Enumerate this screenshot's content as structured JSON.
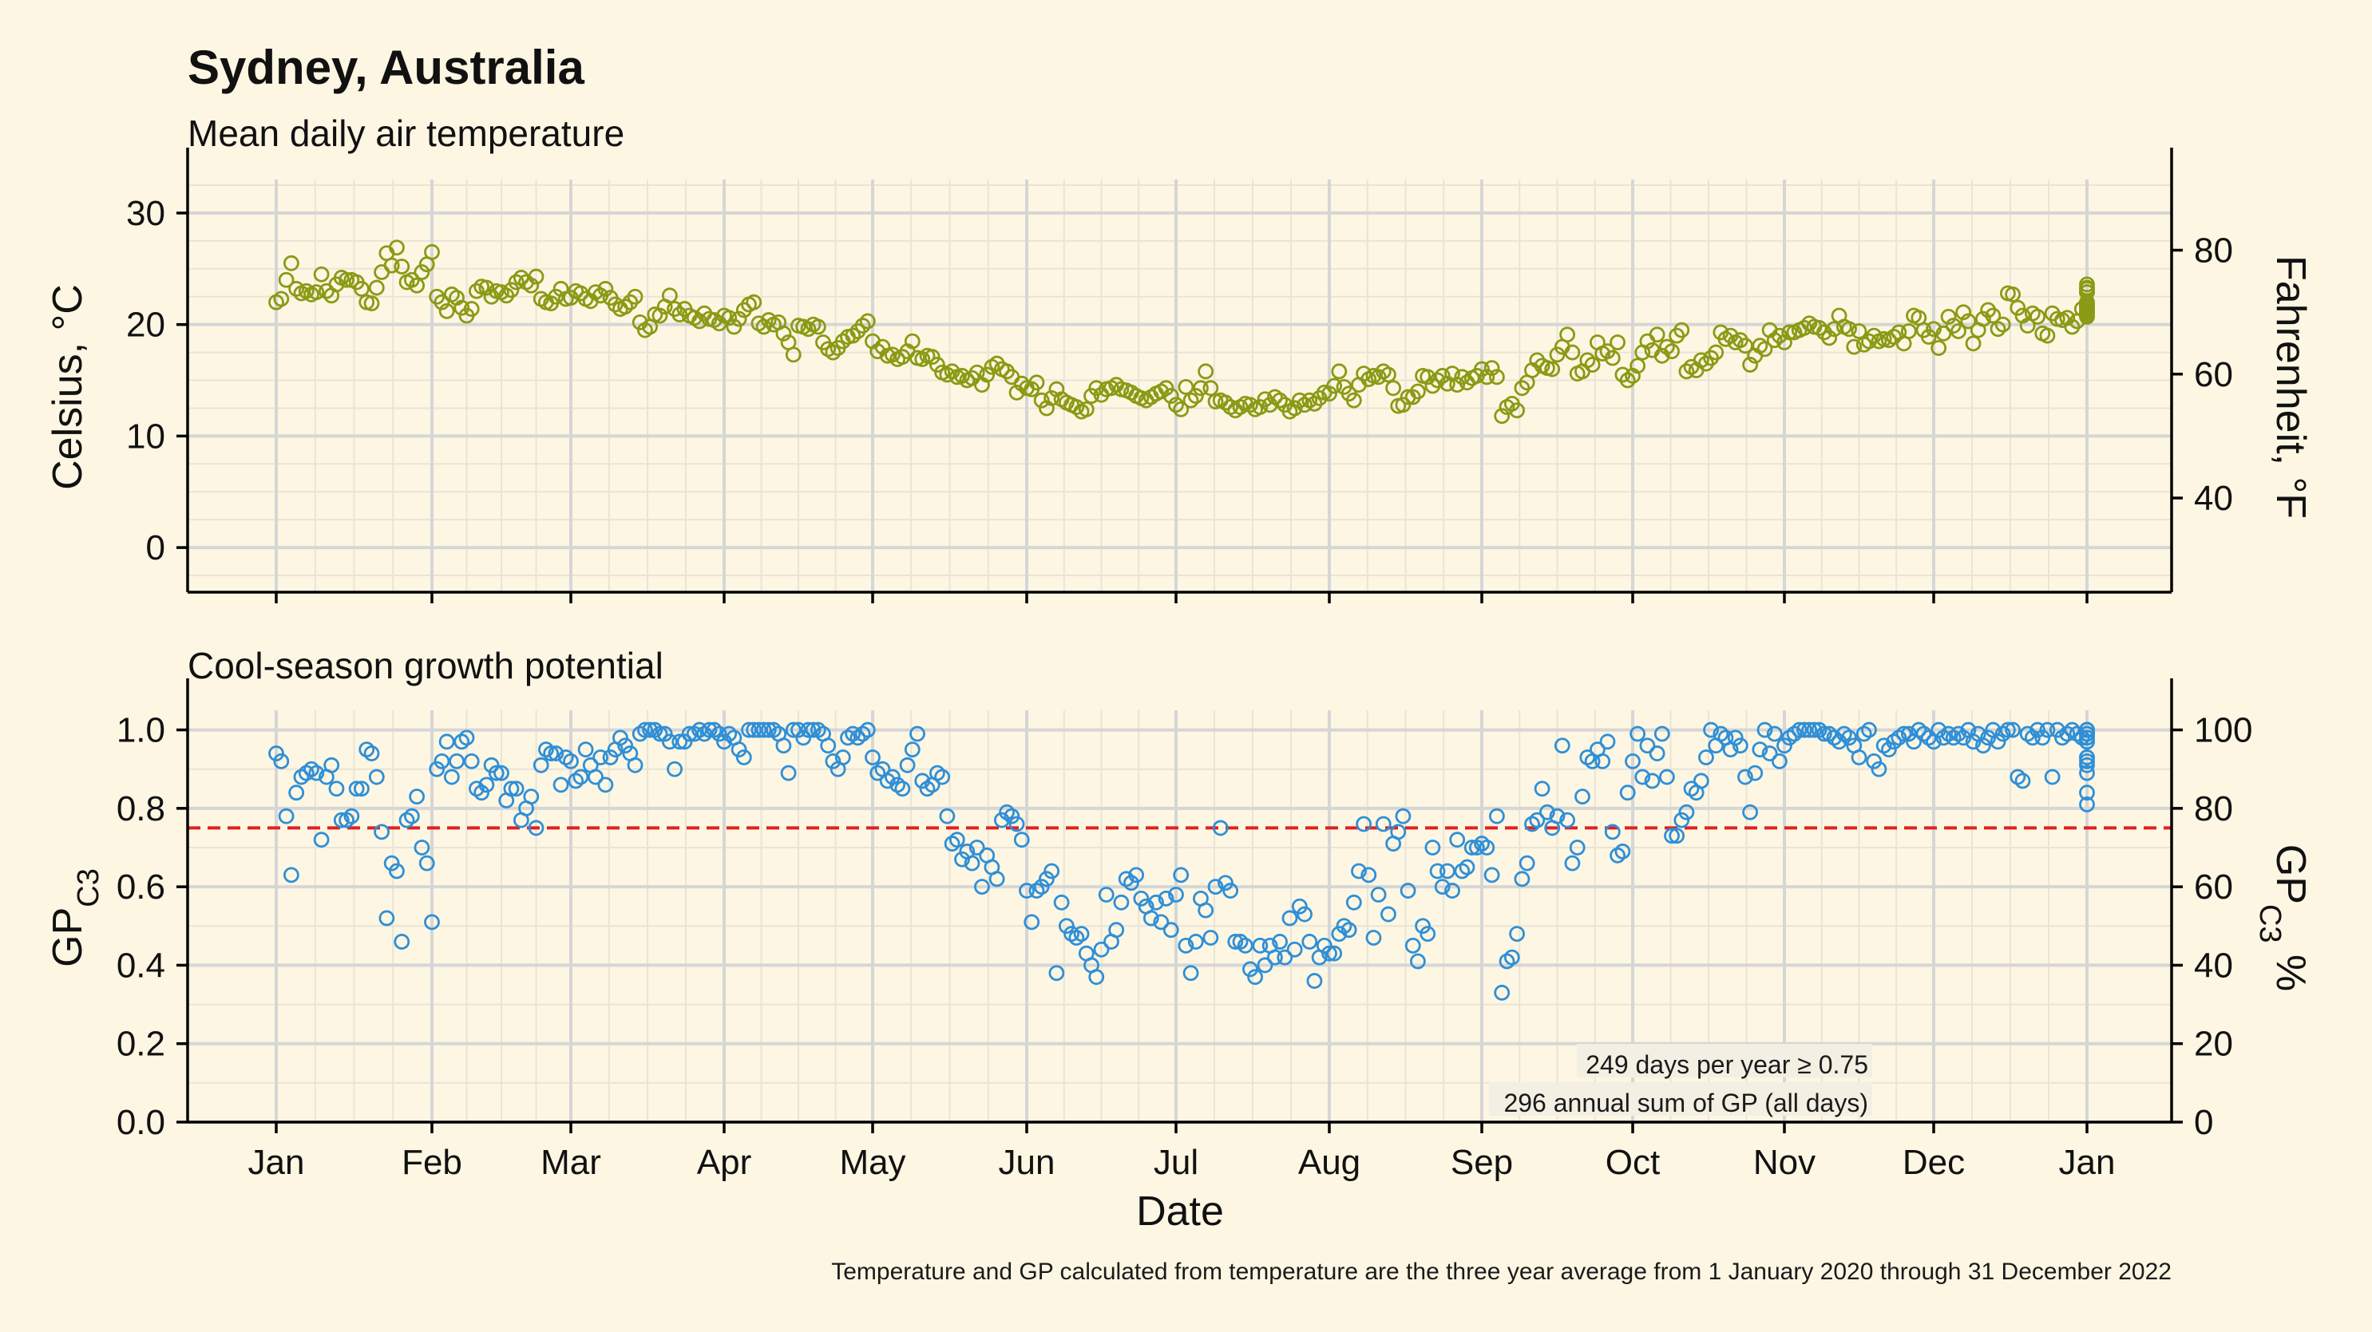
{
  "title": "Sydney, Australia",
  "subtitle_temp": "Mean daily air temperature",
  "subtitle_gp": "Cool-season growth potential",
  "xlabel": "Date",
  "footnote": "Temperature and GP calculated from temperature are the three year average from 1 January 2020 through 31 December 2022",
  "annotation_days": "249 days per year ≥ 0.75",
  "annotation_sum": "296 annual sum of GP (all days)",
  "colors": {
    "temperature": "#8a9a14",
    "gp": "#2f8fd6",
    "threshold": "#e02020",
    "background": "#fdf6e3"
  },
  "chart_data": [
    {
      "type": "scatter",
      "title": "Mean daily air temperature",
      "ylabel": "Celsius, °C",
      "y2label": "Fahrenheit, °F",
      "x_ticks": [
        "Jan",
        "Feb",
        "Mar",
        "Apr",
        "May",
        "Jun",
        "Jul",
        "Aug",
        "Sep",
        "Oct",
        "Nov",
        "Dec",
        "Jan"
      ],
      "y_ticks": [
        0,
        10,
        20,
        30
      ],
      "y2_ticks": [
        40,
        60,
        80
      ],
      "ylim": [
        -4,
        33
      ],
      "grid": true,
      "series": [
        {
          "x_unit": "day of year (1-365)",
          "y": [
            22.0,
            22.3,
            24.0,
            25.5,
            23.2,
            22.8,
            23.0,
            22.7,
            22.9,
            24.5,
            23.0,
            22.6,
            23.6,
            24.2,
            24.0,
            24.0,
            23.8,
            23.2,
            22.0,
            21.9,
            23.3,
            24.7,
            26.4,
            25.3,
            26.9,
            25.2,
            23.8,
            24.0,
            23.5,
            24.7,
            25.4,
            26.5,
            22.5,
            22.0,
            21.2,
            22.7,
            22.4,
            21.5,
            20.8,
            21.4,
            23.0,
            23.4,
            23.3,
            22.5,
            23.0,
            22.9,
            22.6,
            23.1,
            23.8,
            24.2,
            23.8,
            23.5,
            24.3,
            22.3,
            22.0,
            21.9,
            22.5,
            23.2,
            22.3,
            22.4,
            23.0,
            22.8,
            22.3,
            22.1,
            22.9,
            22.6,
            23.2,
            22.4,
            21.8,
            21.4,
            21.6,
            22.0,
            22.5,
            20.2,
            19.5,
            19.8,
            20.9,
            20.8,
            21.6,
            22.6,
            21.4,
            20.9,
            21.4,
            20.8,
            20.6,
            20.3,
            21.0,
            20.5,
            20.4,
            20.1,
            20.8,
            20.6,
            19.8,
            20.5,
            21.3,
            21.8,
            22.0,
            20.1,
            19.8,
            20.4,
            20.0,
            20.2,
            19.2,
            18.4,
            17.3,
            19.9,
            19.8,
            19.6,
            20.0,
            19.8,
            18.4,
            17.8,
            17.5,
            17.9,
            18.5,
            18.9,
            19.0,
            19.4,
            19.9,
            20.3,
            18.5,
            17.6,
            18.0,
            17.2,
            17.3,
            16.9,
            17.1,
            17.6,
            18.5,
            17.0,
            16.9,
            17.2,
            17.1,
            16.4,
            15.7,
            15.5,
            15.8,
            15.3,
            15.4,
            15.0,
            15.2,
            15.7,
            14.6,
            15.5,
            16.2,
            16.5,
            16.0,
            15.8,
            15.3,
            13.9,
            14.7,
            14.3,
            14.2,
            14.8,
            13.2,
            12.5,
            13.4,
            14.2,
            13.3,
            13.0,
            12.8,
            12.6,
            12.2,
            12.4,
            13.6,
            14.3,
            13.7,
            14.2,
            14.3,
            14.6,
            14.2,
            14.1,
            13.9,
            13.6,
            13.4,
            13.2,
            13.5,
            13.8,
            14.0,
            14.3,
            13.6,
            12.8,
            12.4,
            14.4,
            13.2,
            13.6,
            14.3,
            15.8,
            14.3,
            13.1,
            13.2,
            13.0,
            12.6,
            12.3,
            12.6,
            12.9,
            12.8,
            12.4,
            12.6,
            13.3,
            12.8,
            13.5,
            13.2,
            12.8,
            12.2,
            12.5,
            13.2,
            12.8,
            13.2,
            12.9,
            13.4,
            13.9,
            13.8,
            14.5,
            15.8,
            14.4,
            13.8,
            13.2,
            14.6,
            15.6,
            15.1,
            15.4,
            15.3,
            15.8,
            15.5,
            14.3,
            12.7,
            12.8,
            13.5,
            13.5,
            14.0,
            15.4,
            15.3,
            14.5,
            15.0,
            15.4,
            14.7,
            15.6,
            14.6,
            15.3,
            14.8,
            15.2,
            15.4,
            16.0,
            15.3,
            16.1,
            15.3,
            11.8,
            12.6,
            12.9,
            12.3,
            14.3,
            14.8,
            15.9,
            16.8,
            16.3,
            16.1,
            16.0,
            17.3,
            18.0,
            19.1,
            17.5,
            15.6,
            15.8,
            16.8,
            16.4,
            18.4,
            17.4,
            17.6,
            17.0,
            18.4,
            15.5,
            15.0,
            15.4,
            16.3,
            17.5,
            18.5,
            17.7,
            19.1,
            17.2,
            18.0,
            17.6,
            19.0,
            19.5,
            15.8,
            16.2,
            15.9,
            16.8,
            16.5,
            17.0,
            17.5,
            19.3,
            18.7,
            19.0,
            18.4,
            18.6,
            18.1,
            16.4,
            17.2,
            18.1,
            17.8,
            19.5,
            18.6,
            19.0,
            18.4,
            19.3,
            19.3,
            19.5,
            19.7,
            20.1,
            19.8,
            19.7,
            19.3,
            18.8,
            19.6,
            20.8,
            19.8,
            19.6,
            18.0,
            19.4,
            18.2,
            18.5,
            19.0,
            18.5,
            18.7,
            18.6,
            18.9,
            19.3,
            18.3,
            19.4,
            20.8,
            20.6,
            19.5,
            18.9,
            19.6,
            17.9,
            19.2,
            20.7,
            19.9,
            19.4,
            21.1,
            20.3,
            18.3,
            19.5,
            20.5,
            21.3,
            20.8,
            19.6,
            20.0,
            22.8,
            22.7,
            21.5,
            20.8,
            19.9,
            21.0,
            20.7,
            19.2,
            19.0,
            21.0,
            20.5,
            20.4,
            20.6,
            19.8,
            20.3,
            21.4,
            20.8,
            22.9,
            23.3,
            21.7,
            21.6,
            21.4,
            22.9,
            21.9,
            23.2,
            22.9,
            23.6,
            21.7,
            21.1,
            21.0,
            20.7,
            21.2,
            22.0
          ]
        }
      ]
    },
    {
      "type": "scatter",
      "title": "Cool-season growth potential",
      "ylabel": "GP_C3",
      "y2label": "GP_C3 %",
      "x_ticks": [
        "Jan",
        "Feb",
        "Mar",
        "Apr",
        "May",
        "Jun",
        "Jul",
        "Aug",
        "Sep",
        "Oct",
        "Nov",
        "Dec",
        "Jan"
      ],
      "y_ticks": [
        0.0,
        0.2,
        0.4,
        0.6,
        0.8,
        1.0
      ],
      "y2_ticks": [
        0,
        20,
        40,
        60,
        80,
        100
      ],
      "ylim": [
        0,
        1.05
      ],
      "threshold": 0.75,
      "grid": true,
      "series": [
        {
          "x_unit": "day of year (1-365)",
          "y": [
            0.94,
            0.92,
            0.78,
            0.63,
            0.84,
            0.88,
            0.89,
            0.9,
            0.89,
            0.72,
            0.88,
            0.91,
            0.85,
            0.77,
            0.77,
            0.78,
            0.85,
            0.85,
            0.95,
            0.94,
            0.88,
            0.74,
            0.52,
            0.66,
            0.64,
            0.46,
            0.77,
            0.78,
            0.83,
            0.7,
            0.66,
            0.51,
            0.9,
            0.92,
            0.97,
            0.88,
            0.92,
            0.97,
            0.98,
            0.92,
            0.85,
            0.84,
            0.86,
            0.91,
            0.89,
            0.89,
            0.82,
            0.85,
            0.85,
            0.77,
            0.8,
            0.83,
            0.75,
            0.91,
            0.95,
            0.94,
            0.94,
            0.86,
            0.93,
            0.92,
            0.87,
            0.88,
            0.95,
            0.91,
            0.88,
            0.93,
            0.86,
            0.93,
            0.95,
            0.98,
            0.96,
            0.94,
            0.91,
            0.99,
            1.0,
            1.0,
            1.0,
            0.99,
            0.99,
            0.97,
            0.9,
            0.97,
            0.97,
            0.99,
            0.99,
            1.0,
            0.99,
            1.0,
            1.0,
            0.99,
            0.97,
            0.99,
            0.98,
            0.95,
            0.93,
            1.0,
            1.0,
            1.0,
            1.0,
            1.0,
            1.0,
            0.99,
            0.96,
            0.89,
            1.0,
            1.0,
            0.98,
            1.0,
            1.0,
            1.0,
            0.99,
            0.96,
            0.92,
            0.9,
            0.93,
            0.98,
            0.99,
            0.98,
            0.99,
            1.0,
            0.93,
            0.89,
            0.9,
            0.87,
            0.88,
            0.86,
            0.85,
            0.91,
            0.95,
            0.99,
            0.87,
            0.85,
            0.86,
            0.89,
            0.88,
            0.78,
            0.71,
            0.72,
            0.67,
            0.69,
            0.66,
            0.7,
            0.6,
            0.68,
            0.65,
            0.62,
            0.77,
            0.79,
            0.78,
            0.76,
            0.72,
            0.59,
            0.51,
            0.59,
            0.6,
            0.62,
            0.64,
            0.38,
            0.56,
            0.5,
            0.48,
            0.47,
            0.48,
            0.43,
            0.4,
            0.37,
            0.44,
            0.58,
            0.46,
            0.49,
            0.56,
            0.62,
            0.61,
            0.63,
            0.57,
            0.55,
            0.52,
            0.56,
            0.51,
            0.57,
            0.49,
            0.58,
            0.63,
            0.45,
            0.38,
            0.46,
            0.57,
            0.54,
            0.47,
            0.6,
            0.75,
            0.61,
            0.59,
            0.46,
            0.46,
            0.45,
            0.39,
            0.37,
            0.45,
            0.4,
            0.45,
            0.42,
            0.46,
            0.42,
            0.52,
            0.44,
            0.55,
            0.53,
            0.46,
            0.36,
            0.42,
            0.45,
            0.43,
            0.43,
            0.48,
            0.5,
            0.49,
            0.56,
            0.64,
            0.76,
            0.63,
            0.47,
            0.58,
            0.76,
            0.53,
            0.71,
            0.74,
            0.78,
            0.59,
            0.45,
            0.41,
            0.5,
            0.48,
            0.7,
            0.64,
            0.6,
            0.64,
            0.59,
            0.72,
            0.64,
            0.65,
            0.7,
            0.7,
            0.71,
            0.7,
            0.63,
            0.78,
            0.33,
            0.41,
            0.42,
            0.48,
            0.62,
            0.66,
            0.76,
            0.77,
            0.85,
            0.79,
            0.75,
            0.78,
            0.96,
            0.77,
            0.66,
            0.7,
            0.83,
            0.93,
            0.92,
            0.95,
            0.92,
            0.97,
            0.74,
            0.68,
            0.69,
            0.84,
            0.92,
            0.99,
            0.88,
            0.96,
            0.87,
            0.94,
            0.99,
            0.88,
            0.73,
            0.73,
            0.77,
            0.79,
            0.85,
            0.84,
            0.87,
            0.93,
            1.0,
            0.96,
            0.99,
            0.98,
            0.95,
            0.98,
            0.96,
            0.88,
            0.79,
            0.89,
            0.95,
            1.0,
            0.94,
            0.99,
            0.92,
            0.96,
            0.98,
            0.99,
            1.0,
            1.0,
            1.0,
            1.0,
            1.0,
            0.99,
            0.99,
            0.98,
            0.97,
            0.99,
            0.98,
            0.96,
            0.93,
            0.99,
            1.0,
            0.92,
            0.9,
            0.96,
            0.95,
            0.97,
            0.98,
            0.99,
            0.99,
            0.97,
            1.0,
            0.99,
            0.98,
            0.97,
            1.0,
            0.98,
            0.99,
            0.98,
            0.99,
            0.98,
            1.0,
            0.97,
            0.99,
            0.96,
            0.98,
            1.0,
            0.97,
            0.99,
            1.0,
            1.0,
            0.88,
            0.87,
            0.99,
            0.98,
            1.0,
            0.98,
            1.0,
            0.88,
            1.0,
            0.98,
            0.99,
            1.0,
            0.99,
            0.98,
            1.0,
            1.0,
            0.99,
            1.0,
            1.0,
            0.99,
            0.98,
            0.92,
            0.84,
            0.97,
            0.98,
            0.89,
            0.91,
            0.81,
            0.93,
            0.97,
            0.99,
            0.99,
            0.93
          ]
        }
      ]
    }
  ]
}
